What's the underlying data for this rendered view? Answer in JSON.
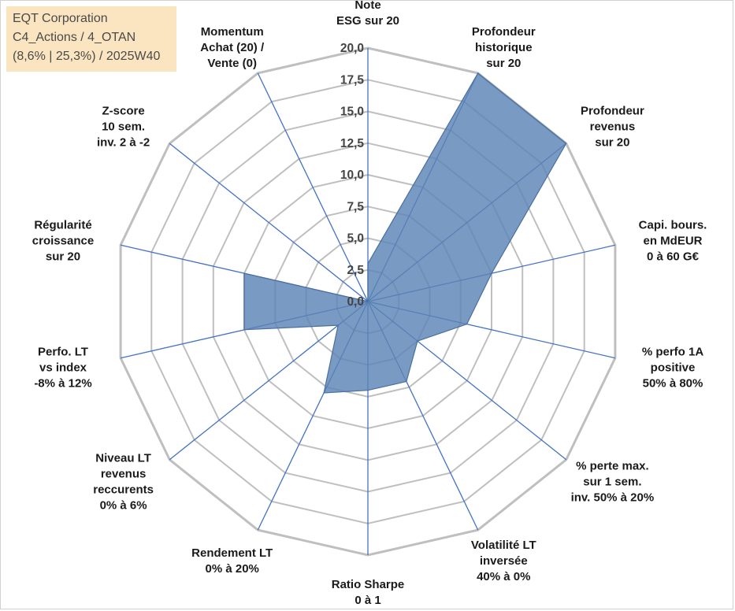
{
  "header": {
    "line1": "EQT Corporation",
    "line2": "C4_Actions / 4_OTAN",
    "line3": "(8,6% | 25,3%) / 2025W40"
  },
  "colors": {
    "grid": "#bfbfbf",
    "axis": "#4472c4",
    "series_fill": "#5b84b5",
    "series_stroke": "#4a6fa0",
    "header_bg": "#fbe5c0"
  },
  "chart_data": {
    "type": "radar",
    "title": "",
    "rmin": 0,
    "rmax": 20,
    "tick_step": 2.5,
    "tick_labels": [
      "0,0",
      "2,5",
      "5,0",
      "7,5",
      "10,0",
      "12,5",
      "15,0",
      "17,5",
      "20,0"
    ],
    "categories": [
      {
        "lines": [
          "Note",
          "ESG sur 20"
        ]
      },
      {
        "lines": [
          "Profondeur",
          "historique",
          "sur 20"
        ]
      },
      {
        "lines": [
          "Profondeur",
          "revenus",
          "sur 20"
        ]
      },
      {
        "lines": [
          "Capi. bours.",
          "en MdEUR",
          "0 à 60 G€"
        ]
      },
      {
        "lines": [
          "% perfo 1A",
          "positive",
          "50% à 80%"
        ]
      },
      {
        "lines": [
          "% perte max.",
          "sur 1 sem.",
          "inv. 50% à 20%"
        ]
      },
      {
        "lines": [
          "Volatilité LT",
          "inversée",
          "40% à 0%"
        ]
      },
      {
        "lines": [
          "Ratio Sharpe",
          "0 à 1"
        ]
      },
      {
        "lines": [
          "Rendement LT",
          "0% à 20%"
        ]
      },
      {
        "lines": [
          "Niveau LT",
          "revenus",
          "reccurents",
          "0% à 6%"
        ]
      },
      {
        "lines": [
          "Perfo. LT",
          "vs index",
          "-8% à 12%"
        ]
      },
      {
        "lines": [
          "Régularité",
          "croissance",
          "sur 20"
        ]
      },
      {
        "lines": [
          "Z-score",
          "10 sem.",
          "inv. 2 à -2"
        ]
      },
      {
        "lines": [
          "Momentum",
          "Achat (20) /",
          "Vente (0)"
        ]
      }
    ],
    "series": [
      {
        "name": "EQT Corporation",
        "values": [
          3.0,
          20.0,
          20.0,
          10.0,
          8.0,
          5.0,
          7.0,
          7.0,
          8.0,
          3.0,
          10.0,
          10.0,
          0.0,
          0.0
        ]
      }
    ]
  }
}
